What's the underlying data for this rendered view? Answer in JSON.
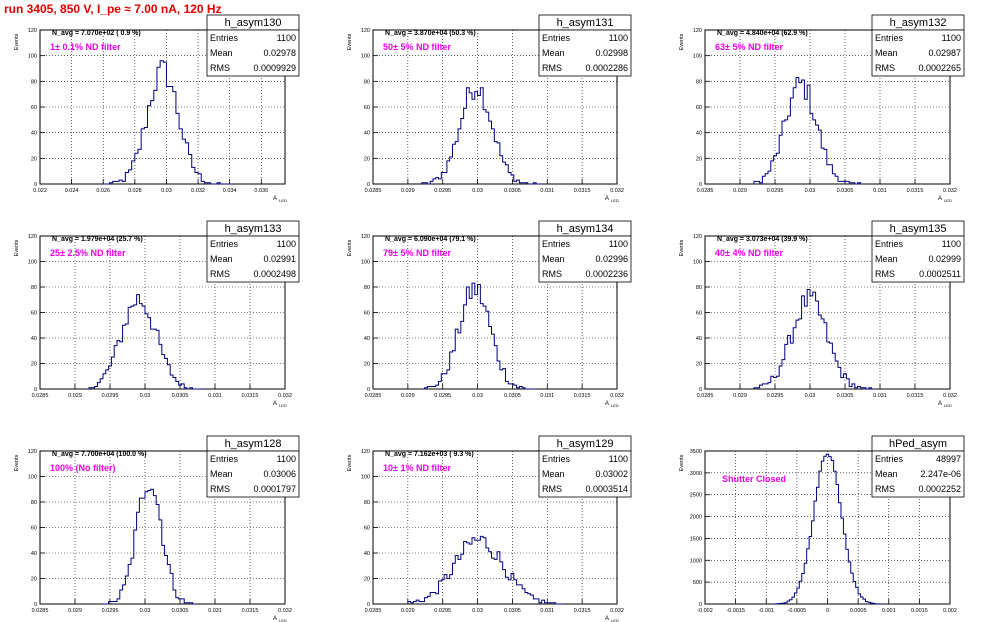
{
  "title": "run 3405,   850 V, I_pe ≈ 7.00 nA, 120 Hz",
  "stats_labels": {
    "entries": "Entries",
    "mean": "Mean",
    "rms": "RMS"
  },
  "chart_data": [
    {
      "type": "bar",
      "name": "h_asym130",
      "entries": "1100",
      "mean": "0.02978",
      "rms": "0.0009929",
      "navg": "N_avg = 7.070e+02 ( 0.9 %)",
      "filter": "1± 0.1% ND filter",
      "xlim": [
        0.022,
        0.0375
      ],
      "ylim": [
        0,
        120
      ],
      "xticks": [
        0.022,
        0.024,
        0.026,
        0.028,
        0.03,
        0.032,
        0.034,
        0.036
      ],
      "xtick_labels": [
        "0.022",
        "0.024",
        "0.026",
        "0.028",
        "0.03",
        "0.032",
        "0.034",
        "0.036"
      ],
      "yticks": [
        0,
        20,
        40,
        60,
        80,
        100,
        120
      ],
      "ylabel": "Events",
      "xlabel": "A",
      "xlabel_sub": "LED",
      "peaks": [
        {
          "mu": 0.02978,
          "sigma": 0.0009929,
          "n": 1100
        }
      ],
      "binw": 0.0002,
      "xrange": [
        0.026,
        0.034
      ]
    },
    {
      "type": "bar",
      "name": "h_asym131",
      "entries": "1100",
      "mean": "0.02998",
      "rms": "0.0002286",
      "navg": "N_avg = 3.870e+04 (50.3 %)",
      "filter": "50± 5% ND filter",
      "xlim": [
        0.0285,
        0.032
      ],
      "ylim": [
        0,
        120
      ],
      "xticks": [
        0.0285,
        0.029,
        0.0295,
        0.03,
        0.0305,
        0.031,
        0.0315,
        0.032
      ],
      "xtick_labels": [
        "0.0285",
        "0.029",
        "0.0295",
        "0.03",
        "0.0305",
        "0.031",
        "0.0315",
        "0.032"
      ],
      "yticks": [
        0,
        20,
        40,
        60,
        80,
        100,
        120
      ],
      "ylabel": "Events",
      "xlabel": "A",
      "xlabel_sub": "LED",
      "peaks": [
        {
          "mu": 0.02998,
          "sigma": 0.0002286,
          "n": 1100
        }
      ],
      "binw": 4e-05,
      "xrange": [
        0.0292,
        0.0309
      ]
    },
    {
      "type": "bar",
      "name": "h_asym132",
      "entries": "1100",
      "mean": "0.02987",
      "rms": "0.0002265",
      "navg": "N_avg = 4.840e+04 (62.9 %)",
      "filter": "63± 5% ND filter",
      "xlim": [
        0.0285,
        0.032
      ],
      "ylim": [
        0,
        120
      ],
      "xticks": [
        0.0285,
        0.029,
        0.0295,
        0.03,
        0.0305,
        0.031,
        0.0315,
        0.032
      ],
      "xtick_labels": [
        "0.0285",
        "0.029",
        "0.0295",
        "0.03",
        "0.0305",
        "0.031",
        "0.0315",
        "0.032"
      ],
      "yticks": [
        0,
        20,
        40,
        60,
        80,
        100,
        120
      ],
      "ylabel": "Events",
      "xlabel": "A",
      "xlabel_sub": "LED",
      "peaks": [
        {
          "mu": 0.02987,
          "sigma": 0.0002265,
          "n": 1100
        }
      ],
      "binw": 4e-05,
      "xrange": [
        0.0292,
        0.0307
      ]
    },
    {
      "type": "bar",
      "name": "h_asym133",
      "entries": "1100",
      "mean": "0.02991",
      "rms": "0.0002498",
      "navg": "N_avg = 1.979e+04 (25.7 %)",
      "filter": "25± 2.5% ND filter",
      "xlim": [
        0.0285,
        0.032
      ],
      "ylim": [
        0,
        120
      ],
      "xticks": [
        0.0285,
        0.029,
        0.0295,
        0.03,
        0.0305,
        0.031,
        0.0315,
        0.032
      ],
      "xtick_labels": [
        "0.0285",
        "0.029",
        "0.0295",
        "0.03",
        "0.0305",
        "0.031",
        "0.0315",
        "0.032"
      ],
      "yticks": [
        0,
        20,
        40,
        60,
        80,
        100,
        120
      ],
      "ylabel": "Events",
      "xlabel": "A",
      "xlabel_sub": "LED",
      "peaks": [
        {
          "mu": 0.02991,
          "sigma": 0.0002498,
          "n": 1100
        }
      ],
      "binw": 4e-05,
      "xrange": [
        0.0292,
        0.0308
      ]
    },
    {
      "type": "bar",
      "name": "h_asym134",
      "entries": "1100",
      "mean": "0.02996",
      "rms": "0.0002236",
      "navg": "N_avg = 6.090e+04 (79.1 %)",
      "filter": "79± 5% ND filter",
      "xlim": [
        0.0285,
        0.032
      ],
      "ylim": [
        0,
        120
      ],
      "xticks": [
        0.0285,
        0.029,
        0.0295,
        0.03,
        0.0305,
        0.031,
        0.0315,
        0.032
      ],
      "xtick_labels": [
        "0.0285",
        "0.029",
        "0.0295",
        "0.03",
        "0.0305",
        "0.031",
        "0.0315",
        "0.032"
      ],
      "yticks": [
        0,
        20,
        40,
        60,
        80,
        100,
        120
      ],
      "ylabel": "Events",
      "xlabel": "A",
      "xlabel_sub": "LED",
      "peaks": [
        {
          "mu": 0.02996,
          "sigma": 0.0002236,
          "n": 1100
        }
      ],
      "binw": 4e-05,
      "xrange": [
        0.0292,
        0.0308
      ]
    },
    {
      "type": "bar",
      "name": "h_asym135",
      "entries": "1100",
      "mean": "0.02999",
      "rms": "0.0002511",
      "navg": "N_avg = 3.073e+04 (39.9 %)",
      "filter": "40± 4% ND filter",
      "xlim": [
        0.0285,
        0.032
      ],
      "ylim": [
        0,
        120
      ],
      "xticks": [
        0.0285,
        0.029,
        0.0295,
        0.03,
        0.0305,
        0.031,
        0.0315,
        0.032
      ],
      "xtick_labels": [
        "0.0285",
        "0.029",
        "0.0295",
        "0.03",
        "0.0305",
        "0.031",
        "0.0315",
        "0.032"
      ],
      "yticks": [
        0,
        20,
        40,
        60,
        80,
        100,
        120
      ],
      "ylabel": "Events",
      "xlabel": "A",
      "xlabel_sub": "LED",
      "peaks": [
        {
          "mu": 0.02999,
          "sigma": 0.0002511,
          "n": 1100
        }
      ],
      "binw": 4e-05,
      "xrange": [
        0.0292,
        0.0309
      ]
    },
    {
      "type": "bar",
      "name": "h_asym128",
      "entries": "1100",
      "mean": "0.03006",
      "rms": "0.0001797",
      "navg": "N_avg = 7.700e+04 (100.0 %)",
      "filter": "100% (No filter)",
      "xlim": [
        0.0285,
        0.032
      ],
      "ylim": [
        0,
        120
      ],
      "xticks": [
        0.0285,
        0.029,
        0.0295,
        0.03,
        0.0305,
        0.031,
        0.0315,
        0.032
      ],
      "xtick_labels": [
        "0.0285",
        "0.029",
        "0.0295",
        "0.03",
        "0.0305",
        "0.031",
        "0.0315",
        "0.032"
      ],
      "yticks": [
        0,
        20,
        40,
        60,
        80,
        100,
        120
      ],
      "ylabel": "Events",
      "xlabel": "A",
      "xlabel_sub": "LED",
      "peaks": [
        {
          "mu": 0.03006,
          "sigma": 0.0001797,
          "n": 1100
        }
      ],
      "binw": 4e-05,
      "xrange": [
        0.0294,
        0.0307
      ]
    },
    {
      "type": "bar",
      "name": "h_asym129",
      "entries": "1100",
      "mean": "0.03002",
      "rms": "0.0003514",
      "navg": "N_avg = 7.162e+03 ( 9.3 %)",
      "filter": "10± 1% ND filter",
      "xlim": [
        0.0285,
        0.032
      ],
      "ylim": [
        0,
        120
      ],
      "xticks": [
        0.0285,
        0.029,
        0.0295,
        0.03,
        0.0305,
        0.031,
        0.0315,
        0.032
      ],
      "xtick_labels": [
        "0.0285",
        "0.029",
        "0.0295",
        "0.03",
        "0.0305",
        "0.031",
        "0.0315",
        "0.032"
      ],
      "yticks": [
        0,
        20,
        40,
        60,
        80,
        100,
        120
      ],
      "ylabel": "Events",
      "xlabel": "A",
      "xlabel_sub": "LED",
      "peaks": [
        {
          "mu": 0.03002,
          "sigma": 0.0003514,
          "n": 1100
        }
      ],
      "binw": 4e-05,
      "xrange": [
        0.029,
        0.0312
      ]
    },
    {
      "type": "bar",
      "name": "hPed_asym",
      "entries": "48997",
      "mean": "2.247e-06",
      "rms": "0.0002252",
      "navg": "",
      "filter": "Shutter Closed",
      "xlim": [
        -0.002,
        0.002
      ],
      "ylim": [
        0,
        3500
      ],
      "xticks": [
        -0.002,
        -0.0015,
        -0.001,
        -0.0005,
        0,
        0.0005,
        0.001,
        0.0015,
        0.002
      ],
      "xtick_labels": [
        "-0.002",
        "-0.0015",
        "-0.001",
        "-0.0005",
        "0",
        "0.0005",
        "0.001",
        "0.0015",
        "0.002"
      ],
      "yticks": [
        0,
        500,
        1000,
        1500,
        2000,
        2500,
        3000,
        3500
      ],
      "ylabel": "Events",
      "xlabel": "",
      "xlabel_sub": "",
      "peaks": [
        {
          "mu": 2.2e-06,
          "sigma": 0.0002252,
          "n": 48997
        }
      ],
      "binw": 4e-05,
      "xrange": [
        -0.0009,
        0.0009
      ]
    }
  ]
}
